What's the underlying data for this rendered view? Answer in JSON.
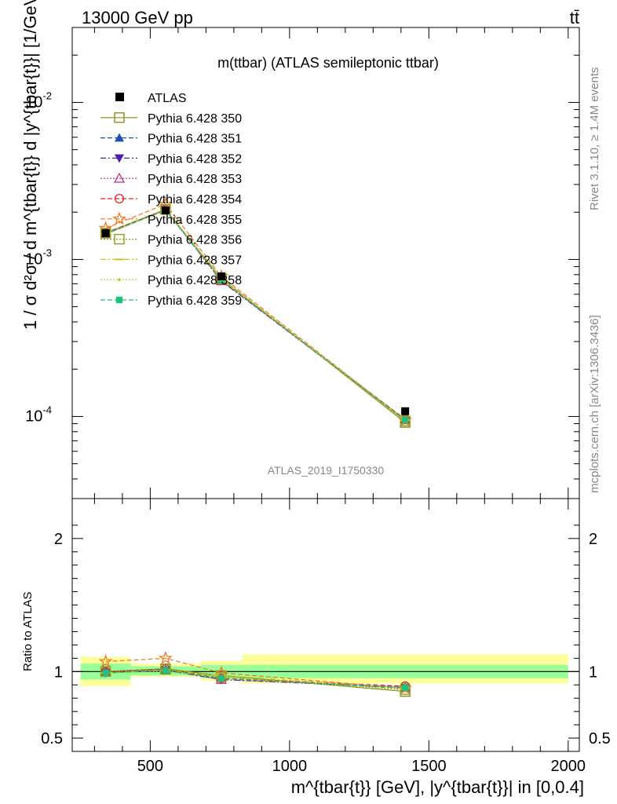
{
  "header": {
    "left": "13000 GeV pp",
    "right": "tt̄"
  },
  "title": "m(ttbar) (ATLAS semileptonic ttbar)",
  "watermark": "ATLAS_2019_I1750330",
  "side_right_top": "Rivet 3.1.10, ≥ 1.4M events",
  "side_right_bottom": "mcplots.cern.ch [arXiv:1306.3436]",
  "chart_data": [
    {
      "type": "line",
      "panel": "main",
      "ylabel": "1 / σ d²σ / d m^{tbar{t}} d |y^{tbar{t}}| [1/GeV]",
      "yscale": "log",
      "ylim": [
        3e-05,
        0.03
      ],
      "xlim": [
        220,
        2040
      ],
      "ytick_labels": [
        "10^-2",
        "10^-3",
        "10^-4"
      ],
      "legend_position": "top-left",
      "x": [
        340,
        555,
        755,
        1415
      ],
      "atlas": {
        "name": "ATLAS",
        "values": [
          0.00147,
          0.00205,
          0.00078,
          0.000108
        ],
        "color": "#000000"
      },
      "series": [
        {
          "name": "Pythia 6.428 350",
          "color": "#8b8b1a",
          "marker": "square-open",
          "dash": "solid",
          "values": [
            0.00147,
            0.00208,
            0.00076,
            9.15e-05
          ]
        },
        {
          "name": "Pythia 6.428 351",
          "color": "#1a4fb4",
          "marker": "triangle-up",
          "dash": "dashed",
          "values": [
            0.00145,
            0.00206,
            0.00074,
            9.45e-05
          ]
        },
        {
          "name": "Pythia 6.428 352",
          "color": "#4b20b0",
          "marker": "triangle-down",
          "dash": "dashdot",
          "values": [
            0.00146,
            0.00207,
            0.00073,
            9.5e-05
          ]
        },
        {
          "name": "Pythia 6.428 353",
          "color": "#c0208a",
          "marker": "triangle-up-open",
          "dash": "dotted",
          "values": [
            0.00147,
            0.00207,
            0.00073,
            9.55e-05
          ]
        },
        {
          "name": "Pythia 6.428 354",
          "color": "#e02020",
          "marker": "circle-open",
          "dash": "dashed",
          "values": [
            0.00148,
            0.00208,
            0.00074,
            9.6e-05
          ]
        },
        {
          "name": "Pythia 6.428 355",
          "color": "#f07820",
          "marker": "star-open",
          "dash": "dashed",
          "values": [
            0.00158,
            0.00225,
            0.00078,
            9.45e-05
          ]
        },
        {
          "name": "Pythia 6.428 356",
          "color": "#8ea020",
          "marker": "square-open",
          "dash": "dotted",
          "values": [
            0.00147,
            0.00208,
            0.00075,
            9.35e-05
          ]
        },
        {
          "name": "Pythia 6.428 357",
          "color": "#d0c020",
          "marker": "dash",
          "dash": "dashdot",
          "values": [
            0.00146,
            0.00206,
            0.00076,
            9.45e-05
          ]
        },
        {
          "name": "Pythia 6.428 358",
          "color": "#b0d020",
          "marker": "dot",
          "dash": "dotted",
          "values": [
            0.00145,
            0.00205,
            0.00075,
            9.3e-05
          ]
        },
        {
          "name": "Pythia 6.428 359",
          "color": "#20c080",
          "marker": "square",
          "dash": "dashed",
          "values": [
            0.00146,
            0.00206,
            0.00074,
            9.5e-05
          ]
        }
      ]
    },
    {
      "type": "line",
      "panel": "ratio",
      "ylabel": "Ratio to ATLAS",
      "ylim": [
        0.4,
        2.3
      ],
      "xlim": [
        220,
        2040
      ],
      "x_ticks": [
        500,
        1000,
        1500,
        2000
      ],
      "y_ticks": [
        0.5,
        1,
        2
      ],
      "xlabel": "m^{tbar{t}} [GeV], |y^{tbar{t}}| in [0,0.4]",
      "bands": [
        {
          "xmin": 250,
          "xmax": 430,
          "stat": [
            0.94,
            1.06
          ],
          "total": [
            0.89,
            1.11
          ]
        },
        {
          "xmin": 430,
          "xmax": 680,
          "stat": [
            0.97,
            1.04
          ],
          "total": [
            0.96,
            1.06
          ]
        },
        {
          "xmin": 680,
          "xmax": 830,
          "stat": [
            0.95,
            1.05
          ],
          "total": [
            0.93,
            1.08
          ]
        },
        {
          "xmin": 830,
          "xmax": 2000,
          "stat": [
            0.95,
            1.05
          ],
          "total": [
            0.91,
            1.13
          ]
        }
      ],
      "x": [
        340,
        555,
        755,
        1415
      ],
      "series_values": [
        [
          1.0,
          1.02,
          0.97,
          0.85
        ],
        [
          0.99,
          1.01,
          0.95,
          0.875
        ],
        [
          0.99,
          1.01,
          0.94,
          0.88
        ],
        [
          1.0,
          1.01,
          0.94,
          0.885
        ],
        [
          1.0,
          1.02,
          0.95,
          0.89
        ],
        [
          1.075,
          1.1,
          0.99,
          0.875
        ],
        [
          1.0,
          1.02,
          0.96,
          0.865
        ],
        [
          0.99,
          1.01,
          0.97,
          0.875
        ],
        [
          0.99,
          1.0,
          0.96,
          0.86
        ],
        [
          0.99,
          1.01,
          0.95,
          0.88
        ]
      ]
    }
  ]
}
